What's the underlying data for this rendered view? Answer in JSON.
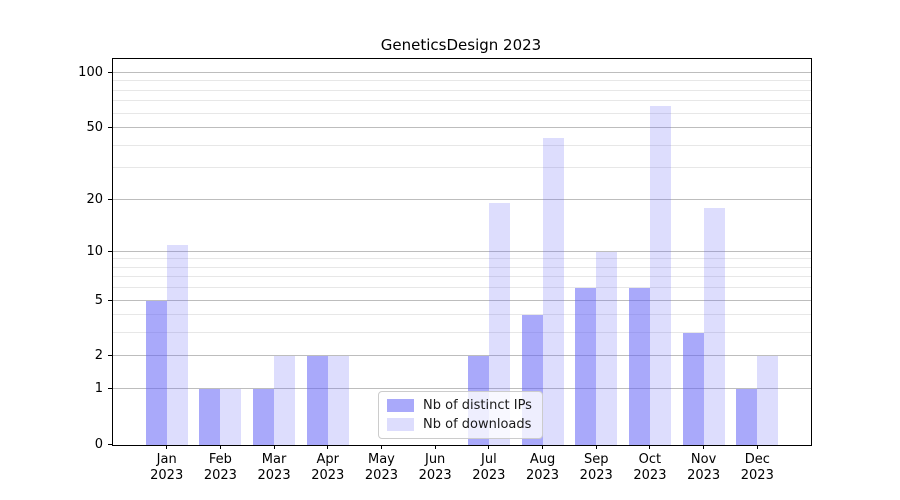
{
  "chart_data": {
    "type": "bar",
    "title": "GeneticsDesign 2023",
    "categories": [
      "Jan 2023",
      "Feb 2023",
      "Mar 2023",
      "Apr 2023",
      "May 2023",
      "Jun 2023",
      "Jul 2023",
      "Aug 2023",
      "Sep 2023",
      "Oct 2023",
      "Nov 2023",
      "Dec 2023"
    ],
    "series": [
      {
        "name": "Nb of distinct IPs",
        "color": "rgba(98,98,245,0.55)",
        "values": [
          5,
          1,
          1,
          2,
          0,
          0,
          2,
          4,
          6,
          6,
          3,
          1
        ]
      },
      {
        "name": "Nb of downloads",
        "color": "rgba(98,98,245,0.22)",
        "values": [
          11,
          1,
          2,
          2,
          0,
          0,
          19,
          44,
          10,
          66,
          18,
          2
        ]
      }
    ],
    "yscale": "log1p",
    "ylim": [
      0,
      119
    ],
    "y_major_ticks": [
      0,
      1,
      2,
      5,
      10,
      20,
      50,
      100
    ],
    "y_minor_ticks": [
      3,
      4,
      6,
      7,
      8,
      9,
      30,
      40,
      60,
      70,
      80,
      90
    ],
    "grid": true,
    "legend_position": "lower center",
    "colors": {
      "grid_major": "#bdbdbd",
      "grid_minor": "#e7e7e7",
      "spine": "#000000",
      "background": "#ffffff"
    }
  }
}
